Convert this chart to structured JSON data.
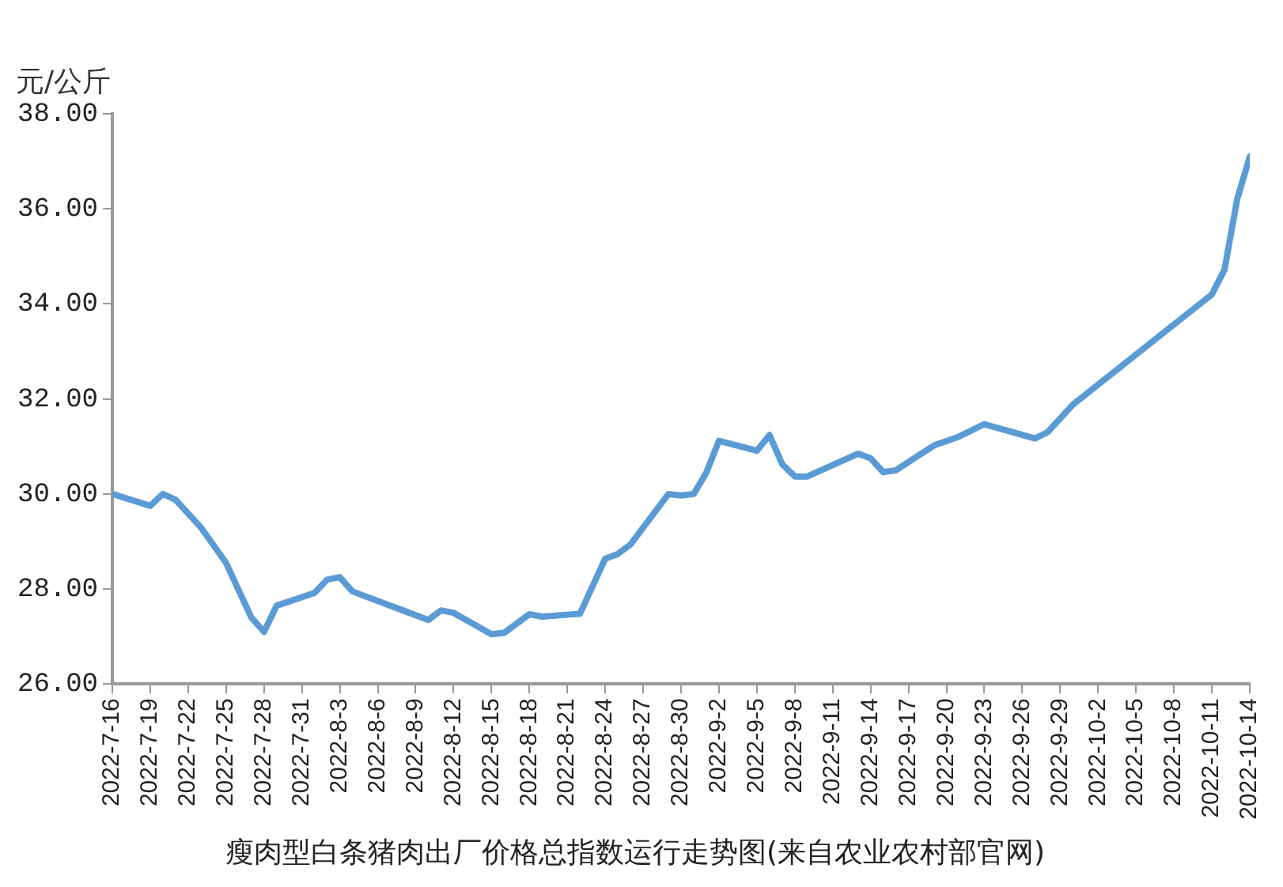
{
  "chart_data": {
    "type": "line",
    "title": "瘦肉型白条猪肉出厂价格总指数运行走势图(来自农业农村部官网)",
    "ylabel": "元/公斤",
    "x": [
      "2022-07-16",
      "2022-07-19",
      "2022-07-20",
      "2022-07-21",
      "2022-07-23",
      "2022-07-25",
      "2022-07-27",
      "2022-07-28",
      "2022-07-29",
      "2022-08-01",
      "2022-08-02",
      "2022-08-03",
      "2022-08-04",
      "2022-08-10",
      "2022-08-11",
      "2022-08-12",
      "2022-08-15",
      "2022-08-16",
      "2022-08-18",
      "2022-08-19",
      "2022-08-22",
      "2022-08-24",
      "2022-08-25",
      "2022-08-26",
      "2022-08-29",
      "2022-08-30",
      "2022-08-31",
      "2022-09-01",
      "2022-09-02",
      "2022-09-05",
      "2022-09-06",
      "2022-09-07",
      "2022-09-08",
      "2022-09-09",
      "2022-09-13",
      "2022-09-14",
      "2022-09-15",
      "2022-09-16",
      "2022-09-19",
      "2022-09-21",
      "2022-09-23",
      "2022-09-27",
      "2022-09-28",
      "2022-09-30",
      "2022-10-11",
      "2022-10-12",
      "2022-10-13",
      "2022-10-14"
    ],
    "series": [
      {
        "color": "#5b9bd5",
        "values": [
          30.0,
          29.75,
          30.0,
          29.88,
          29.3,
          28.55,
          27.4,
          27.1,
          27.65,
          27.92,
          28.2,
          28.25,
          27.95,
          27.35,
          27.55,
          27.5,
          27.05,
          27.08,
          27.47,
          27.42,
          27.48,
          28.64,
          28.74,
          28.94,
          30.0,
          29.97,
          30.0,
          30.45,
          31.12,
          30.91,
          31.24,
          30.63,
          30.37,
          30.37,
          30.85,
          30.75,
          30.46,
          30.5,
          31.02,
          31.21,
          31.47,
          31.17,
          31.3,
          31.88,
          34.2,
          34.72,
          36.2,
          37.1
        ]
      }
    ],
    "xlim": [
      "2022-07-16",
      "2022-10-14"
    ],
    "xticks": [
      {
        "value": "2022-07-16",
        "label": "2022-7-16"
      },
      {
        "value": "2022-07-19",
        "label": "2022-7-19"
      },
      {
        "value": "2022-07-22",
        "label": "2022-7-22"
      },
      {
        "value": "2022-07-25",
        "label": "2022-7-25"
      },
      {
        "value": "2022-07-28",
        "label": "2022-7-28"
      },
      {
        "value": "2022-07-31",
        "label": "2022-7-31"
      },
      {
        "value": "2022-08-03",
        "label": "2022-8-3"
      },
      {
        "value": "2022-08-06",
        "label": "2022-8-6"
      },
      {
        "value": "2022-08-09",
        "label": "2022-8-9"
      },
      {
        "value": "2022-08-12",
        "label": "2022-8-12"
      },
      {
        "value": "2022-08-15",
        "label": "2022-8-15"
      },
      {
        "value": "2022-08-18",
        "label": "2022-8-18"
      },
      {
        "value": "2022-08-21",
        "label": "2022-8-21"
      },
      {
        "value": "2022-08-24",
        "label": "2022-8-24"
      },
      {
        "value": "2022-08-27",
        "label": "2022-8-27"
      },
      {
        "value": "2022-08-30",
        "label": "2022-8-30"
      },
      {
        "value": "2022-09-02",
        "label": "2022-9-2"
      },
      {
        "value": "2022-09-05",
        "label": "2022-9-5"
      },
      {
        "value": "2022-09-08",
        "label": "2022-9-8"
      },
      {
        "value": "2022-09-11",
        "label": "2022-9-11"
      },
      {
        "value": "2022-09-14",
        "label": "2022-9-14"
      },
      {
        "value": "2022-09-17",
        "label": "2022-9-17"
      },
      {
        "value": "2022-09-20",
        "label": "2022-9-20"
      },
      {
        "value": "2022-09-23",
        "label": "2022-9-23"
      },
      {
        "value": "2022-09-26",
        "label": "2022-9-26"
      },
      {
        "value": "2022-09-29",
        "label": "2022-9-29"
      },
      {
        "value": "2022-10-02",
        "label": "2022-10-2"
      },
      {
        "value": "2022-10-05",
        "label": "2022-10-5"
      },
      {
        "value": "2022-10-08",
        "label": "2022-10-8"
      },
      {
        "value": "2022-10-11",
        "label": "2022-10-11"
      },
      {
        "value": "2022-10-14",
        "label": "2022-10-14"
      }
    ],
    "ylim": [
      26,
      38
    ],
    "yticks": [
      {
        "value": 26,
        "label": "26.00"
      },
      {
        "value": 28,
        "label": "28.00"
      },
      {
        "value": 30,
        "label": "30.00"
      },
      {
        "value": 32,
        "label": "32.00"
      },
      {
        "value": 34,
        "label": "34.00"
      },
      {
        "value": 36,
        "label": "36.00"
      },
      {
        "value": 38,
        "label": "38.00"
      }
    ],
    "grid": false,
    "legend": false,
    "marker": "none",
    "line_style": "solid"
  }
}
